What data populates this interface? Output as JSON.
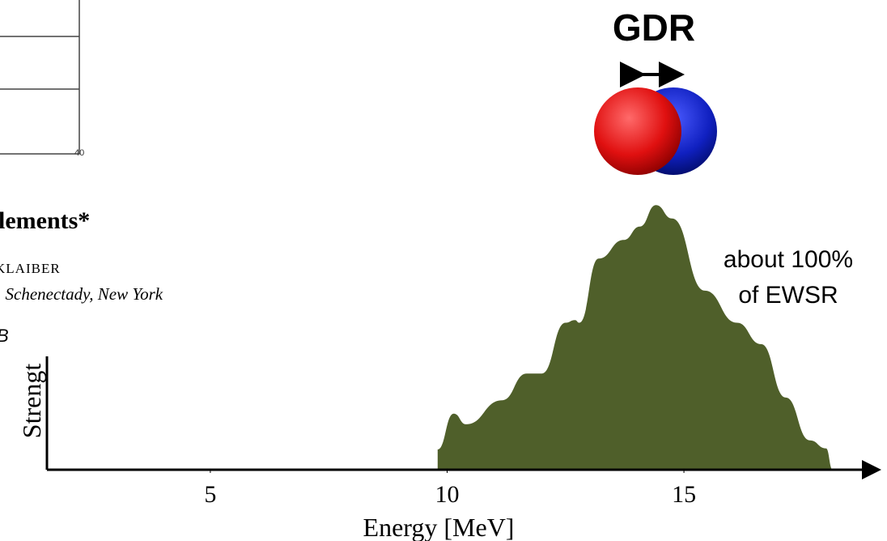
{
  "chart_data": {
    "type": "area",
    "title": "GDR",
    "annotations": [
      "about 100%",
      "of EWSR"
    ],
    "xlabel": "Energy [MeV]",
    "ylabel": "Strengt",
    "xlim": [
      1.55,
      19.1
    ],
    "xticks": [
      5,
      10,
      15
    ],
    "ylim": [
      0,
      100
    ],
    "color": "#4f5f2a",
    "x": [
      9.8,
      9.8,
      10.14,
      10.4,
      11.16,
      11.68,
      12.0,
      12.5,
      12.7,
      12.79,
      13.2,
      13.73,
      14.07,
      14.41,
      14.75,
      15.44,
      16.12,
      16.63,
      17.15,
      17.66,
      18.0,
      18.14
    ],
    "values": [
      0,
      7.6,
      21,
      17,
      26,
      36,
      36,
      55,
      56,
      55,
      79,
      86,
      91,
      99,
      94,
      67,
      55,
      47,
      27,
      11,
      8,
      0
    ]
  },
  "paper_excerpt": {
    "axis_label": "40",
    "heading": "lements*",
    "author": "KLAIBER",
    "affiliation": ", Schenectady, New York",
    "letter": "B"
  }
}
